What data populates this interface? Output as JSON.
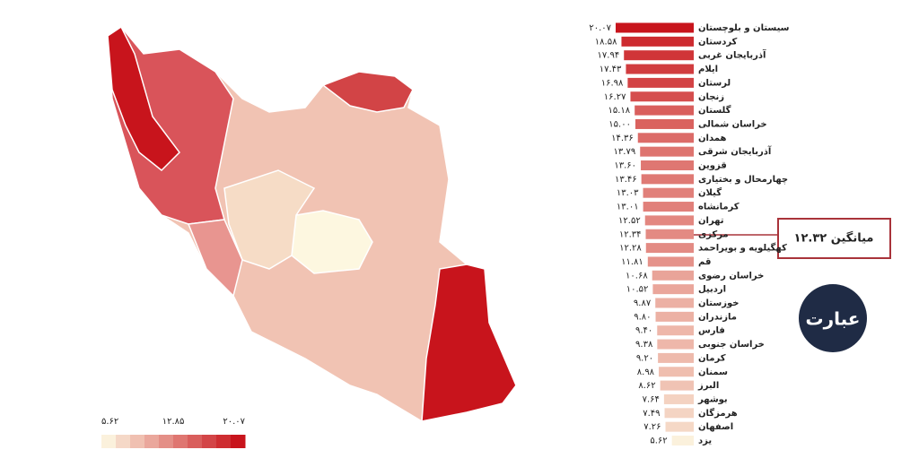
{
  "chart_data": {
    "type": "bar",
    "orientation": "horizontal",
    "categories": [
      "سیستان و بلوچستان",
      "کردستان",
      "آذربایجان غربی",
      "ایلام",
      "لرستان",
      "زنجان",
      "گلستان",
      "خراسان شمالی",
      "همدان",
      "آذربایجان شرقی",
      "قزوین",
      "چهارمحال و بختیاری",
      "گیلان",
      "کرمانشاه",
      "تهران",
      "مرکزی",
      "کهگیلویه و بویراحمد",
      "قم",
      "خراسان رضوی",
      "اردبیل",
      "خوزستان",
      "مازندران",
      "فارس",
      "خراسان جنوبی",
      "کرمان",
      "سمنان",
      "البرز",
      "بوشهر",
      "هرمزگان",
      "اصفهان",
      "یزد"
    ],
    "values": [
      20.07,
      18.58,
      17.94,
      17.43,
      16.98,
      16.27,
      15.18,
      15.0,
      14.36,
      13.79,
      13.6,
      13.46,
      13.03,
      13.01,
      12.52,
      12.34,
      12.28,
      11.81,
      10.68,
      10.52,
      9.87,
      9.8,
      9.4,
      9.38,
      9.2,
      8.98,
      8.62,
      7.64,
      7.49,
      7.26,
      5.62
    ],
    "value_labels": [
      "۲۰.۰۷",
      "۱۸.۵۸",
      "۱۷.۹۴",
      "۱۷.۴۳",
      "۱۶.۹۸",
      "۱۶.۲۷",
      "۱۵.۱۸",
      "۱۵.۰۰",
      "۱۴.۳۶",
      "۱۳.۷۹",
      "۱۳.۶۰",
      "۱۳.۴۶",
      "۱۳.۰۳",
      "۱۳.۰۱",
      "۱۲.۵۲",
      "۱۲.۳۴",
      "۱۲.۲۸",
      "۱۱.۸۱",
      "۱۰.۶۸",
      "۱۰.۵۲",
      "۹.۸۷",
      "۹.۸۰",
      "۹.۴۰",
      "۹.۳۸",
      "۹.۲۰",
      "۸.۹۸",
      "۸.۶۲",
      "۷.۶۴",
      "۷.۴۹",
      "۷.۲۶",
      "۵.۶۲"
    ],
    "xlim": [
      0,
      20.07
    ],
    "colorscale": [
      "#fbf1dc",
      "#c8141c"
    ],
    "annotation": "میانگین ۱۲.۳۲",
    "colorbar_ticks": [
      {
        "value": 5.62,
        "label": "۵.۶۲"
      },
      {
        "value": 12.85,
        "label": "۱۲.۸۵"
      },
      {
        "value": 20.07,
        "label": "۲۰.۰۷"
      }
    ],
    "logo_text": "عبارت"
  }
}
